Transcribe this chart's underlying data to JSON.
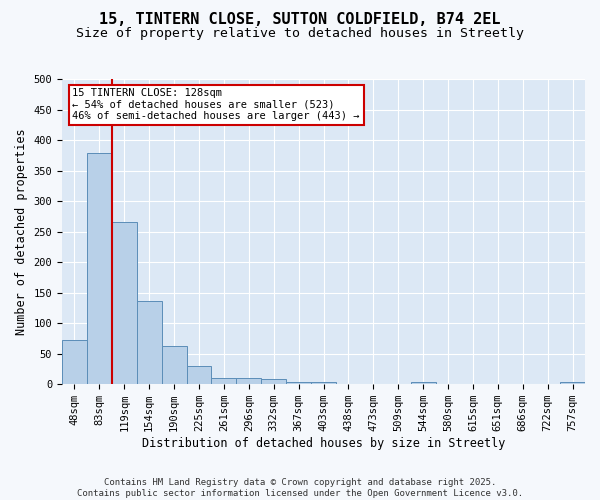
{
  "title1": "15, TINTERN CLOSE, SUTTON COLDFIELD, B74 2EL",
  "title2": "Size of property relative to detached houses in Streetly",
  "xlabel": "Distribution of detached houses by size in Streetly",
  "ylabel": "Number of detached properties",
  "categories": [
    "48sqm",
    "83sqm",
    "119sqm",
    "154sqm",
    "190sqm",
    "225sqm",
    "261sqm",
    "296sqm",
    "332sqm",
    "367sqm",
    "403sqm",
    "438sqm",
    "473sqm",
    "509sqm",
    "544sqm",
    "580sqm",
    "615sqm",
    "651sqm",
    "686sqm",
    "722sqm",
    "757sqm"
  ],
  "values": [
    73,
    378,
    266,
    137,
    62,
    30,
    11,
    11,
    9,
    3,
    4,
    0,
    0,
    0,
    4,
    0,
    0,
    0,
    0,
    0,
    3
  ],
  "bar_color": "#b8d0e8",
  "bar_edge_color": "#5b8db8",
  "bg_color": "#dce8f5",
  "grid_color": "#ffffff",
  "annotation_text": "15 TINTERN CLOSE: 128sqm\n← 54% of detached houses are smaller (523)\n46% of semi-detached houses are larger (443) →",
  "annotation_box_color": "#ffffff",
  "annotation_box_edge": "#cc0000",
  "ylim": [
    0,
    500
  ],
  "yticks": [
    0,
    50,
    100,
    150,
    200,
    250,
    300,
    350,
    400,
    450,
    500
  ],
  "footer": "Contains HM Land Registry data © Crown copyright and database right 2025.\nContains public sector information licensed under the Open Government Licence v3.0.",
  "title_fontsize": 11,
  "subtitle_fontsize": 9.5,
  "axis_label_fontsize": 8.5,
  "tick_fontsize": 7.5,
  "footer_fontsize": 6.5,
  "annot_fontsize": 7.5
}
